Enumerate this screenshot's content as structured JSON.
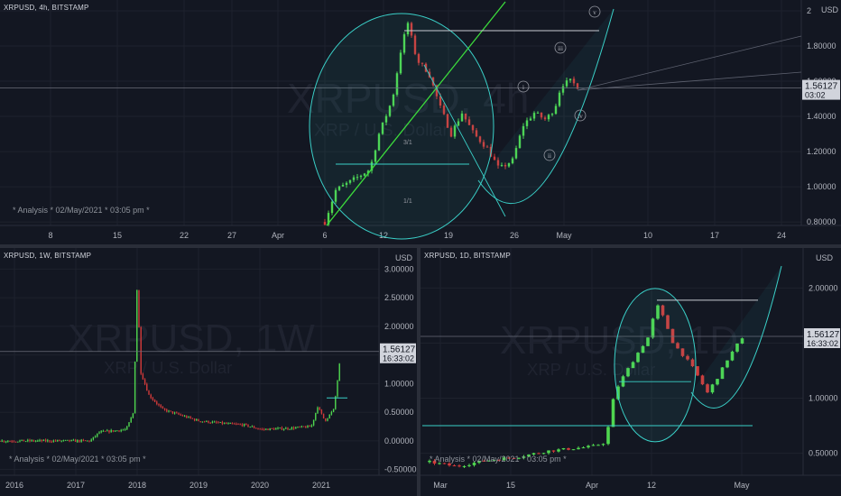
{
  "colors": {
    "background": "#131722",
    "up": "#4fd64f",
    "down": "#d13a3a",
    "grid": "#1e222d",
    "text": "#b2b5be",
    "cyan": "#3ad0c8",
    "green_line": "#3cdc3c",
    "tag_bg": "#d1d4dc"
  },
  "panels": {
    "top": {
      "symbol": "XRPUSD, 4h, BITSTAMP",
      "watermark": "XRPUSD, 4h",
      "watermark_sub": "XRP / U.S. Dollar",
      "footer": "*  Analysis  *  02/May/2021  *  03:05 pm  *",
      "axis_unit": "USD",
      "price_tag": "1.56127",
      "price_tag_time": "03:02",
      "x_ticks": [
        "8",
        "15",
        "22",
        "27",
        "Apr",
        "6",
        "12",
        "19",
        "26",
        "May",
        "10",
        "17",
        "24"
      ],
      "y_ticks": [
        "2",
        "1.80000",
        "1.60000",
        "1.40000",
        "1.20000",
        "1.00000",
        "0.80000"
      ],
      "wave_labels": [
        "i",
        "ii",
        "iii",
        "iv",
        "v"
      ],
      "fib_labels": [
        "3/1",
        "1/1"
      ]
    },
    "bottom_left": {
      "symbol": "XRPUSD, 1W, BITSTAMP",
      "watermark": "XRPUSD, 1W",
      "watermark_sub": "XRP / U.S. Dollar",
      "footer": "*  Analysis  *  02/May/2021  *  03:05 pm  *",
      "axis_unit": "USD",
      "price_tag": "1.56127",
      "price_tag_time": "16:33:02",
      "x_ticks": [
        "2016",
        "2017",
        "2018",
        "2019",
        "2020",
        "2021"
      ],
      "y_ticks": [
        "3.00000",
        "2.50000",
        "2.00000",
        "1.50000",
        "1.00000",
        "0.50000",
        "0.00000",
        "-0.50000"
      ]
    },
    "bottom_right": {
      "symbol": "XRPUSD, 1D, BITSTAMP",
      "watermark": "XRPUSD, 1D",
      "watermark_sub": "XRP / U.S. Dollar",
      "footer": "*  Analysis  *  02/May/2021  *  03:05 pm  *",
      "axis_unit": "USD",
      "price_tag": "1.56127",
      "price_tag_time": "16:33:02",
      "x_ticks": [
        "Mar",
        "15",
        "Apr",
        "12",
        "May"
      ],
      "y_ticks": [
        "2.00000",
        "1.50000",
        "1.00000",
        "0.50000"
      ]
    }
  },
  "chart_data": [
    {
      "type": "candlestick",
      "title": "XRPUSD, 4h, BITSTAMP",
      "ylim": [
        0.78,
        2.0
      ],
      "x": [
        "Apr 5",
        "Apr 6",
        "Apr 7",
        "Apr 8",
        "Apr 9",
        "Apr 10",
        "Apr 11",
        "Apr 12",
        "Apr 13",
        "Apr 14",
        "Apr 15",
        "Apr 16",
        "Apr 17",
        "Apr 18",
        "Apr 19",
        "Apr 20",
        "Apr 21",
        "Apr 22",
        "Apr 23",
        "Apr 24",
        "Apr 25",
        "Apr 26",
        "Apr 27",
        "Apr 28",
        "Apr 29",
        "Apr 30",
        "May 1",
        "May 2"
      ],
      "close": [
        0.82,
        0.98,
        1.05,
        1.06,
        1.12,
        1.28,
        1.45,
        1.7,
        1.92,
        1.72,
        1.58,
        1.35,
        1.45,
        1.25,
        1.38,
        1.3,
        1.18,
        1.1,
        1.15,
        1.08,
        1.18,
        1.4,
        1.45,
        1.42,
        1.48,
        1.6,
        1.57,
        1.56
      ]
    },
    {
      "type": "candlestick",
      "title": "XRPUSD, 1W, BITSTAMP",
      "ylim": [
        -0.6,
        3.1
      ],
      "x": [
        "2016",
        "2017",
        "2018",
        "2019",
        "2020",
        "2021"
      ],
      "close": [
        0.007,
        0.2,
        1.2,
        0.35,
        0.2,
        1.56
      ],
      "peak": 2.75
    },
    {
      "type": "candlestick",
      "title": "XRPUSD, 1D, BITSTAMP",
      "ylim": [
        0.3,
        2.2
      ],
      "x": [
        "Mar",
        "15",
        "Apr",
        "12",
        "May"
      ],
      "close": [
        0.43,
        0.48,
        0.55,
        1.3,
        1.56
      ],
      "peak": 1.96
    }
  ]
}
